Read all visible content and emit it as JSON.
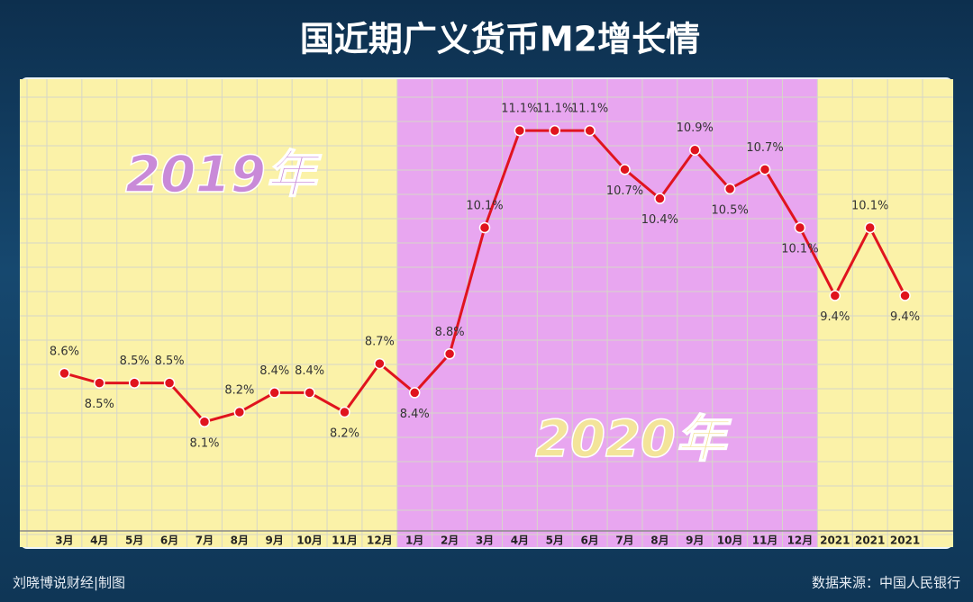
{
  "chart_data": {
    "type": "line",
    "title": "国近期广义货币M2增长情",
    "categories": [
      "3月",
      "4月",
      "5月",
      "6月",
      "7月",
      "8月",
      "9月",
      "10月",
      "11月",
      "12月",
      "1月",
      "2月",
      "3月",
      "4月",
      "5月",
      "6月",
      "7月",
      "8月",
      "9月",
      "10月",
      "11月",
      "12月",
      "2021",
      "2021",
      "2021"
    ],
    "series": [
      {
        "name": "M2",
        "color": "#e0141e",
        "values": [
          8.6,
          8.5,
          8.5,
          8.5,
          8.1,
          8.2,
          8.4,
          8.4,
          8.2,
          8.7,
          8.4,
          8.8,
          10.1,
          11.1,
          11.1,
          11.1,
          10.7,
          10.4,
          10.9,
          10.5,
          10.7,
          10.1,
          9.4,
          10.1,
          9.4
        ],
        "value_labels": [
          "8.6%",
          "8.5%",
          "8.5%",
          "8.5%",
          "8.1%",
          "8.2%",
          "8.4%",
          "8.4%",
          "8.2%",
          "8.7%",
          "8.4%",
          "8.8%",
          "10.1%",
          "11.1%",
          "11.1%",
          "11.1%",
          "10.7%",
          "10.4%",
          "10.9%",
          "10.5%",
          "10.7%",
          "10.1%",
          "9.4%",
          "10.1%",
          "9.4%"
        ]
      }
    ],
    "ylim": [
      6.93,
      11.63
    ],
    "annotations": [
      "2019年",
      "2020年"
    ],
    "footer_left": "刘晓博说财经|制图",
    "footer_right": "数据来源：中国人民银行"
  }
}
